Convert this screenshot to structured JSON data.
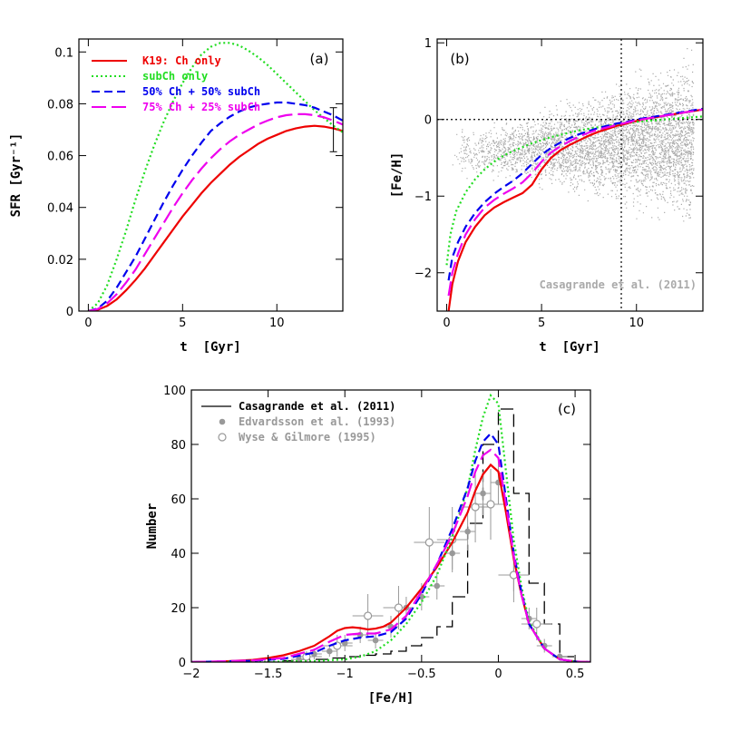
{
  "colors": {
    "red": "#ee0000",
    "green": "#22dd22",
    "blue": "#0000ee",
    "magenta": "#ee00ee",
    "black": "#000000",
    "gray": "#999999"
  },
  "chart_data": [
    {
      "type": "line",
      "panel": "(a)",
      "xlabel": "t  [Gyr]",
      "ylabel": "SFR [Gyr⁻¹]",
      "xlim": [
        -0.5,
        13.5
      ],
      "ylim": [
        0,
        0.105
      ],
      "xticks": [
        0,
        5,
        10
      ],
      "yticks": [
        0,
        0.02,
        0.04,
        0.06,
        0.08,
        0.1
      ],
      "ytick_labels": [
        "0",
        "0.02",
        "0.04",
        "0.06",
        "0.08",
        "0.1"
      ],
      "legend_position": "top-left",
      "series": [
        {
          "name": "K19: Ch only",
          "color": "red",
          "style": "solid",
          "x": [
            0,
            0.5,
            1,
            1.5,
            2,
            2.5,
            3,
            3.5,
            4,
            4.5,
            5,
            5.5,
            6,
            6.5,
            7,
            7.5,
            8,
            8.5,
            9,
            9.5,
            10,
            10.5,
            11,
            11.5,
            12,
            12.5,
            13,
            13.5
          ],
          "y": [
            0,
            0.0005,
            0.002,
            0.0045,
            0.008,
            0.012,
            0.0165,
            0.0215,
            0.0265,
            0.0315,
            0.0365,
            0.041,
            0.0455,
            0.0495,
            0.053,
            0.0565,
            0.0595,
            0.062,
            0.0645,
            0.0665,
            0.068,
            0.0695,
            0.0705,
            0.0712,
            0.0715,
            0.0712,
            0.0705,
            0.0695
          ]
        },
        {
          "name": "subCh only",
          "color": "green",
          "style": "dotted",
          "x": [
            0,
            0.5,
            1,
            1.5,
            2,
            2.5,
            3,
            3.5,
            4,
            4.5,
            5,
            5.5,
            6,
            6.5,
            7,
            7.5,
            8,
            8.5,
            9,
            9.5,
            10,
            10.5,
            11,
            11.5,
            12,
            12.5,
            13,
            13.5
          ],
          "y": [
            0,
            0.003,
            0.01,
            0.02,
            0.031,
            0.043,
            0.054,
            0.064,
            0.073,
            0.081,
            0.088,
            0.094,
            0.099,
            0.102,
            0.1035,
            0.1035,
            0.1025,
            0.1005,
            0.098,
            0.095,
            0.0915,
            0.088,
            0.0845,
            0.081,
            0.0775,
            0.0745,
            0.0715,
            0.069
          ]
        },
        {
          "name": "50% Ch + 50% subCh",
          "color": "blue",
          "style": "dashed",
          "x": [
            0,
            0.5,
            1,
            1.5,
            2,
            2.5,
            3,
            3.5,
            4,
            4.5,
            5,
            5.5,
            6,
            6.5,
            7,
            7.5,
            8,
            8.5,
            9,
            9.5,
            10,
            10.5,
            11,
            11.5,
            12,
            12.5,
            13,
            13.5
          ],
          "y": [
            0,
            0.001,
            0.004,
            0.009,
            0.015,
            0.021,
            0.028,
            0.035,
            0.042,
            0.0485,
            0.0545,
            0.06,
            0.065,
            0.0695,
            0.0725,
            0.075,
            0.077,
            0.0785,
            0.0795,
            0.08,
            0.0805,
            0.0805,
            0.08,
            0.0795,
            0.0785,
            0.077,
            0.0755,
            0.0735
          ]
        },
        {
          "name": "75% Ch + 25% subCh",
          "color": "magenta",
          "style": "longdash",
          "x": [
            0,
            0.5,
            1,
            1.5,
            2,
            2.5,
            3,
            3.5,
            4,
            4.5,
            5,
            5.5,
            6,
            6.5,
            7,
            7.5,
            8,
            8.5,
            9,
            9.5,
            10,
            10.5,
            11,
            11.5,
            12,
            12.5,
            13,
            13.5
          ],
          "y": [
            0,
            0.0008,
            0.003,
            0.0065,
            0.011,
            0.016,
            0.022,
            0.028,
            0.034,
            0.04,
            0.0455,
            0.0505,
            0.055,
            0.059,
            0.0625,
            0.0655,
            0.068,
            0.07,
            0.072,
            0.0735,
            0.0748,
            0.0756,
            0.076,
            0.076,
            0.0756,
            0.0748,
            0.0735,
            0.072
          ]
        }
      ],
      "error_bar": {
        "x": 13.0,
        "y": 0.07,
        "err": 0.0085
      }
    },
    {
      "type": "scatter",
      "panel": "(b)",
      "xlabel": "t  [Gyr]",
      "ylabel": "[Fe/H]",
      "xlim": [
        -0.5,
        13.5
      ],
      "ylim": [
        -2.5,
        1.05
      ],
      "xticks": [
        0,
        5,
        10
      ],
      "yticks": [
        -2,
        -1,
        0,
        1
      ],
      "vline_x": 9.2,
      "hline_y": 0,
      "annotation": "Casagrande et al. (2011)",
      "series": [
        {
          "name": "K19: Ch only",
          "color": "red",
          "style": "solid",
          "x": [
            0.1,
            0.3,
            0.6,
            1,
            1.5,
            2,
            2.5,
            3,
            3.5,
            4,
            4.5,
            5,
            5.5,
            6,
            6.5,
            7,
            7.5,
            8,
            8.5,
            9,
            9.5,
            10,
            10.5,
            11,
            11.5,
            12,
            12.5,
            13,
            13.5
          ],
          "y": [
            -2.5,
            -2.15,
            -1.85,
            -1.6,
            -1.4,
            -1.25,
            -1.15,
            -1.08,
            -1.02,
            -0.96,
            -0.85,
            -0.65,
            -0.5,
            -0.4,
            -0.33,
            -0.27,
            -0.21,
            -0.16,
            -0.12,
            -0.08,
            -0.05,
            -0.02,
            0.01,
            0.03,
            0.05,
            0.07,
            0.09,
            0.11,
            0.13
          ]
        },
        {
          "name": "subCh only",
          "color": "green",
          "style": "dotted",
          "x": [
            0,
            0.2,
            0.5,
            1,
            1.5,
            2,
            2.5,
            3,
            3.5,
            4,
            4.5,
            5,
            5.5,
            6,
            6.5,
            7,
            7.5,
            8,
            8.5,
            9,
            9.5,
            10,
            10.5,
            11,
            11.5,
            12,
            12.5,
            13,
            13.5
          ],
          "y": [
            -1.9,
            -1.5,
            -1.2,
            -0.95,
            -0.78,
            -0.65,
            -0.55,
            -0.47,
            -0.41,
            -0.36,
            -0.31,
            -0.27,
            -0.23,
            -0.2,
            -0.17,
            -0.14,
            -0.12,
            -0.1,
            -0.08,
            -0.06,
            -0.04,
            -0.03,
            -0.02,
            -0.01,
            0.0,
            0.01,
            0.02,
            0.03,
            0.04
          ]
        },
        {
          "name": "50% Ch + 50% subCh",
          "color": "blue",
          "style": "dashed",
          "x": [
            0.1,
            0.3,
            0.6,
            1,
            1.5,
            2,
            2.5,
            3,
            3.5,
            4,
            4.5,
            5,
            5.5,
            6,
            6.5,
            7,
            7.5,
            8,
            8.5,
            9,
            9.5,
            10,
            10.5,
            11,
            11.5,
            12,
            12.5,
            13,
            13.5
          ],
          "y": [
            -2.1,
            -1.8,
            -1.6,
            -1.4,
            -1.22,
            -1.08,
            -0.97,
            -0.88,
            -0.8,
            -0.7,
            -0.58,
            -0.46,
            -0.37,
            -0.3,
            -0.24,
            -0.19,
            -0.15,
            -0.11,
            -0.08,
            -0.05,
            -0.03,
            0.0,
            0.02,
            0.04,
            0.06,
            0.08,
            0.1,
            0.12,
            0.14
          ]
        },
        {
          "name": "75% Ch + 25% subCh",
          "color": "magenta",
          "style": "longdash",
          "x": [
            0.1,
            0.3,
            0.6,
            1,
            1.5,
            2,
            2.5,
            3,
            3.5,
            4,
            4.5,
            5,
            5.5,
            6,
            6.5,
            7,
            7.5,
            8,
            8.5,
            9,
            9.5,
            10,
            10.5,
            11,
            11.5,
            12,
            12.5,
            13,
            13.5
          ],
          "y": [
            -2.3,
            -2.0,
            -1.75,
            -1.5,
            -1.3,
            -1.15,
            -1.05,
            -0.97,
            -0.9,
            -0.82,
            -0.7,
            -0.55,
            -0.43,
            -0.35,
            -0.28,
            -0.22,
            -0.17,
            -0.13,
            -0.1,
            -0.07,
            -0.04,
            -0.01,
            0.01,
            0.03,
            0.05,
            0.07,
            0.09,
            0.11,
            0.13
          ]
        }
      ]
    },
    {
      "type": "line",
      "panel": "(c)",
      "xlabel": "[Fe/H]",
      "ylabel": "Number",
      "xlim": [
        -2,
        0.6
      ],
      "ylim": [
        0,
        100
      ],
      "xticks": [
        -2,
        -1.5,
        -1,
        -0.5,
        0,
        0.5
      ],
      "xtick_labels": [
        "−2",
        "−1.5",
        "−1",
        "−0.5",
        "0",
        "0.5"
      ],
      "yticks": [
        0,
        20,
        40,
        60,
        80,
        100
      ],
      "legend_position": "top-left",
      "histogram": {
        "name": "Casagrande et al. (2011)",
        "color": "black",
        "edges": [
          -2,
          -1.4,
          -1.3,
          -1.2,
          -1.1,
          -1.0,
          -0.9,
          -0.8,
          -0.7,
          -0.6,
          -0.5,
          -0.4,
          -0.3,
          -0.2,
          -0.1,
          0.0,
          0.1,
          0.2,
          0.3,
          0.4,
          0.5,
          0.6
        ],
        "counts": [
          0,
          0.5,
          1,
          1,
          1.5,
          2,
          2.5,
          3,
          4,
          6,
          9,
          13,
          24,
          51,
          80,
          93,
          62,
          29,
          14,
          2,
          0
        ]
      },
      "points_edvardsson": {
        "name": "Edvardsson et al. (1993)",
        "color": "gray",
        "x": [
          -1.3,
          -1.2,
          -1.1,
          -1.0,
          -0.9,
          -0.8,
          -0.7,
          -0.6,
          -0.5,
          -0.4,
          -0.3,
          -0.2,
          -0.1,
          0.0,
          0.1,
          0.2,
          0.3,
          0.4
        ],
        "y": [
          1,
          3,
          4,
          7,
          10,
          8,
          13,
          20,
          24,
          28,
          40,
          48,
          62,
          66,
          32,
          16,
          6,
          2
        ],
        "yerr": [
          1,
          2,
          2,
          3,
          3,
          3,
          4,
          4,
          5,
          5,
          6,
          7,
          8,
          8,
          6,
          4,
          2.5,
          1.5
        ],
        "xerr": 0.05
      },
      "points_wyse": {
        "name": "Wyse & Gilmore (1995)",
        "color": "gray",
        "x": [
          -1.25,
          -1.05,
          -0.85,
          -0.65,
          -0.45,
          -0.3,
          -0.15,
          -0.05,
          0.1,
          0.25
        ],
        "y": [
          2,
          6,
          17,
          20,
          44,
          45,
          57,
          58,
          32,
          14
        ],
        "yerr": [
          2,
          4,
          8,
          8,
          13,
          12,
          13,
          13,
          10,
          6
        ],
        "xerr": 0.1
      },
      "series": [
        {
          "name": "K19: Ch only",
          "color": "red",
          "style": "solid",
          "x": [
            -2,
            -1.8,
            -1.6,
            -1.5,
            -1.4,
            -1.3,
            -1.2,
            -1.1,
            -1.05,
            -1.0,
            -0.95,
            -0.9,
            -0.85,
            -0.8,
            -0.75,
            -0.7,
            -0.6,
            -0.5,
            -0.4,
            -0.3,
            -0.2,
            -0.15,
            -0.1,
            -0.05,
            0,
            0.05,
            0.1,
            0.15,
            0.2,
            0.3,
            0.4,
            0.5,
            0.6
          ],
          "y": [
            0,
            0.2,
            0.8,
            1.5,
            2.5,
            4,
            6,
            9.5,
            11.5,
            12.5,
            12.8,
            12.5,
            12,
            12.3,
            13,
            14.5,
            20,
            27,
            35,
            44,
            55,
            63,
            69,
            72.5,
            70,
            55,
            38,
            25,
            14,
            5,
            1,
            0.2,
            0
          ]
        },
        {
          "name": "subCh only",
          "color": "green",
          "style": "dotted",
          "x": [
            -2,
            -1.5,
            -1.2,
            -1.0,
            -0.9,
            -0.8,
            -0.7,
            -0.6,
            -0.5,
            -0.4,
            -0.3,
            -0.2,
            -0.15,
            -0.1,
            -0.05,
            0,
            0.05,
            0.1,
            0.15,
            0.2,
            0.3,
            0.4,
            0.5,
            0.6
          ],
          "y": [
            0,
            0.1,
            0.4,
            1,
            2,
            4,
            8,
            14,
            22,
            32,
            46,
            64,
            78,
            90,
            98,
            95,
            70,
            45,
            28,
            15,
            5,
            1,
            0.2,
            0
          ]
        },
        {
          "name": "50% Ch + 50% subCh",
          "color": "blue",
          "style": "dashed",
          "x": [
            -2,
            -1.6,
            -1.4,
            -1.2,
            -1.1,
            -1.0,
            -0.9,
            -0.8,
            -0.7,
            -0.6,
            -0.5,
            -0.4,
            -0.3,
            -0.2,
            -0.15,
            -0.1,
            -0.05,
            0,
            0.05,
            0.1,
            0.15,
            0.2,
            0.3,
            0.4,
            0.5,
            0.6
          ],
          "y": [
            0,
            0.5,
            1.2,
            3.5,
            6,
            8,
            9,
            9.5,
            11,
            16,
            25,
            36,
            49,
            64,
            74,
            81,
            84,
            80,
            60,
            40,
            26,
            14,
            5,
            1,
            0.2,
            0
          ]
        },
        {
          "name": "75% Ch + 25% subCh",
          "color": "magenta",
          "style": "longdash",
          "x": [
            -2,
            -1.6,
            -1.4,
            -1.2,
            -1.1,
            -1.0,
            -0.9,
            -0.8,
            -0.7,
            -0.6,
            -0.5,
            -0.4,
            -0.3,
            -0.2,
            -0.15,
            -0.1,
            -0.05,
            0,
            0.05,
            0.1,
            0.15,
            0.2,
            0.3,
            0.4,
            0.5,
            0.6
          ],
          "y": [
            0,
            0.6,
            1.5,
            4.5,
            7.5,
            10,
            10.5,
            10.5,
            12,
            17,
            26,
            36,
            47,
            61,
            70,
            76,
            78,
            75,
            58,
            39,
            25,
            14,
            5,
            1,
            0.2,
            0
          ]
        }
      ]
    }
  ]
}
